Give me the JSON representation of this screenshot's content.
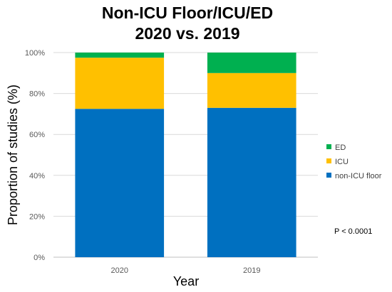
{
  "chart_data": {
    "type": "bar",
    "stacked": true,
    "title": [
      "Non-ICU Floor/ICU/ED",
      "2020 vs. 2019"
    ],
    "xlabel": "Year",
    "ylabel": "Proportion of studies (%)",
    "categories": [
      "2020",
      "2019"
    ],
    "series": [
      {
        "name": "non-ICU floor",
        "values": [
          72.5,
          73
        ],
        "color": "#0070c0"
      },
      {
        "name": "ICU",
        "values": [
          25,
          17
        ],
        "color": "#ffc000"
      },
      {
        "name": "ED",
        "values": [
          2.5,
          10
        ],
        "color": "#00b050"
      }
    ],
    "ylim": [
      0,
      100
    ],
    "yticks": [
      0,
      20,
      40,
      60,
      80,
      100
    ],
    "ytick_labels": [
      "0%",
      "20%",
      "40%",
      "60%",
      "80%",
      "100%"
    ],
    "grid": true,
    "legend_position": "right",
    "legend_order": [
      "ED",
      "ICU",
      "non-ICU floor"
    ],
    "annotation": "P < 0.0001"
  }
}
